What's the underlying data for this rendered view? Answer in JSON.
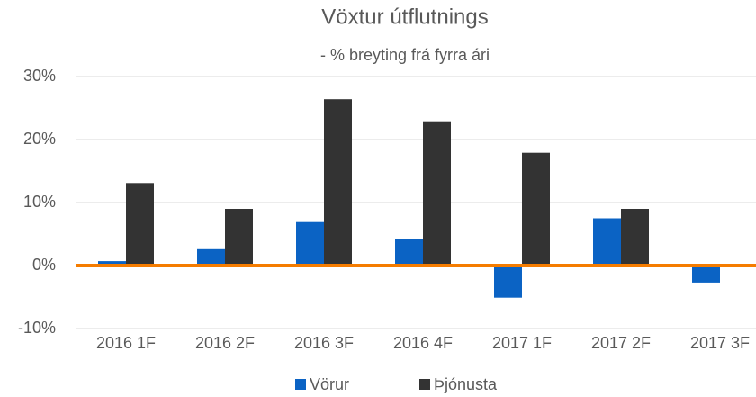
{
  "chart_data": {
    "type": "bar",
    "title": "Vöxtur útflutnings",
    "subtitle": "- % breyting frá fyrra ári",
    "categories": [
      "2016 1F",
      "2016 2F",
      "2016 3F",
      "2016 4F",
      "2017 1F",
      "2017 2F",
      "2017 3F"
    ],
    "series": [
      {
        "name": "Vörur",
        "color": "#0b63c4",
        "values": [
          0.7,
          2.6,
          6.9,
          4.2,
          -5.1,
          7.5,
          -2.7
        ]
      },
      {
        "name": "Þjónusta",
        "color": "#333333",
        "values": [
          13.1,
          9.0,
          26.4,
          22.9,
          17.9,
          9.0,
          null
        ]
      }
    ],
    "ylim": [
      -10,
      30
    ],
    "yticks": [
      {
        "value": -10,
        "label": "-10%"
      },
      {
        "value": 0,
        "label": "0%"
      },
      {
        "value": 10,
        "label": "10%"
      },
      {
        "value": 20,
        "label": "20%"
      },
      {
        "value": 30,
        "label": "30%"
      }
    ],
    "grid": true,
    "zero_line_color": "#f57c00",
    "legend": "bottom"
  }
}
